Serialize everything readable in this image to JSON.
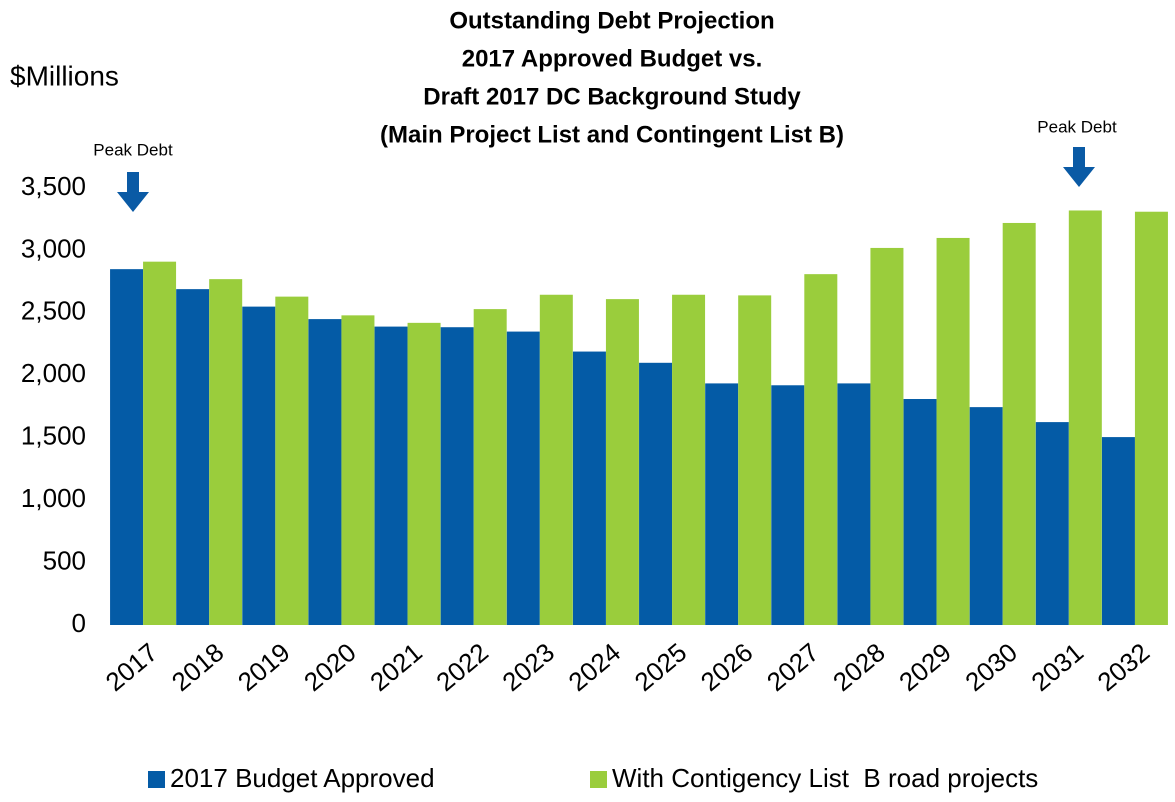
{
  "chart_data": {
    "type": "bar",
    "title": [
      "Outstanding Debt Projection",
      "2017 Approved Budget vs.",
      "Draft 2017 DC Background Study",
      "(Main Project List and Contingent List B)"
    ],
    "y_label": "$Millions",
    "annotations": [
      "Peak Debt",
      "Peak Debt"
    ],
    "categories": [
      "2017",
      "2018",
      "2019",
      "2020",
      "2021",
      "2022",
      "2023",
      "2024",
      "2025",
      "2026",
      "2027",
      "2028",
      "2029",
      "2030",
      "2031",
      "2032"
    ],
    "series": [
      {
        "name": "2017 Budget Approved",
        "color": "#045ba6",
        "values": [
          2850,
          2690,
          2550,
          2450,
          2390,
          2385,
          2350,
          2190,
          2100,
          1935,
          1920,
          1935,
          1810,
          1745,
          1625,
          1505
        ]
      },
      {
        "name": "With Contigency List  B road projects",
        "color": "#9acd3c",
        "values": [
          2910,
          2770,
          2630,
          2480,
          2420,
          2530,
          2645,
          2610,
          2645,
          2640,
          2810,
          3020,
          3100,
          3220,
          3320,
          3310
        ]
      }
    ],
    "ylim": [
      0,
      3500
    ],
    "yticks": [
      0,
      {
        "value": 500,
        "label": "500"
      },
      {
        "value": 1000,
        "label": "1,000"
      },
      {
        "value": 1500,
        "label": "1,500"
      },
      {
        "value": 2000,
        "label": "2,000"
      },
      {
        "value": 2500,
        "label": "2,500"
      },
      {
        "value": 3000,
        "label": "3,000"
      },
      {
        "value": 3500,
        "label": "3,500"
      }
    ],
    "grid": false,
    "legend": "bottom"
  }
}
